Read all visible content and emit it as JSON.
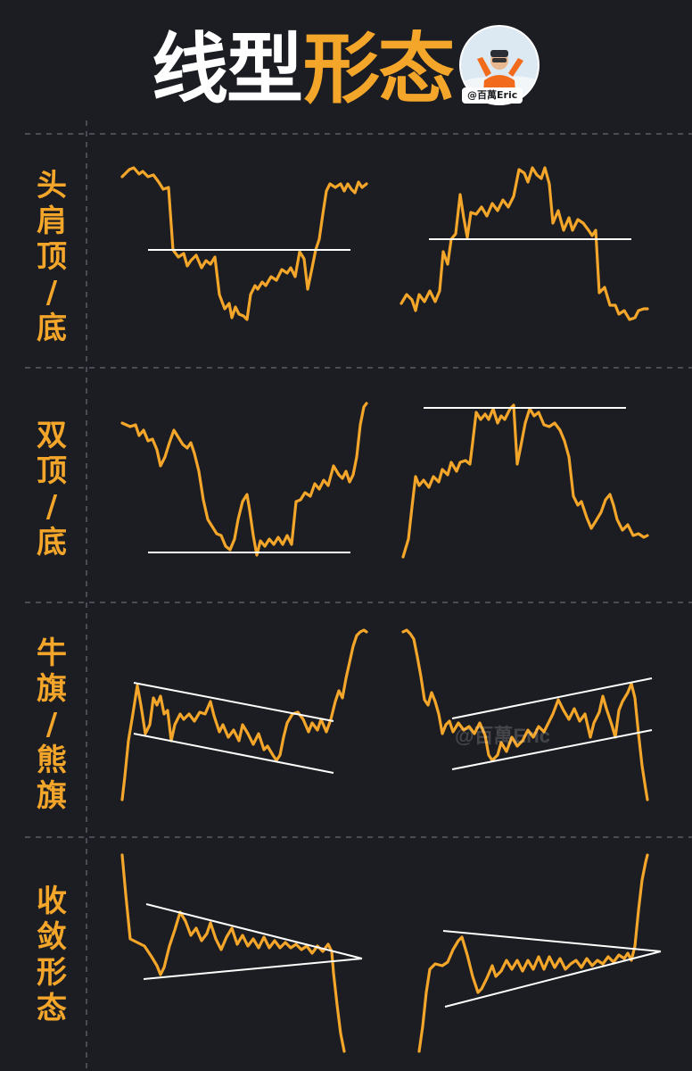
{
  "header": {
    "title_white": "线型",
    "title_orange": "形态",
    "author_tag": "@百萬Eric",
    "avatar_icon": "person-avatar-icon"
  },
  "rows": [
    {
      "label": [
        "头",
        "肩",
        "顶",
        "/",
        "底"
      ]
    },
    {
      "label": [
        "双",
        "顶",
        "/",
        "底"
      ]
    },
    {
      "label": [
        "牛",
        "旗",
        "/",
        "熊",
        "旗"
      ]
    },
    {
      "label": [
        "收",
        "敛",
        "形",
        "态"
      ]
    }
  ],
  "colors": {
    "background": "#1b1d22",
    "accent": "#f4a62a",
    "reference_line": "#ffffff",
    "divider": "#5a5d66"
  },
  "watermark": "@百萬Eric"
}
